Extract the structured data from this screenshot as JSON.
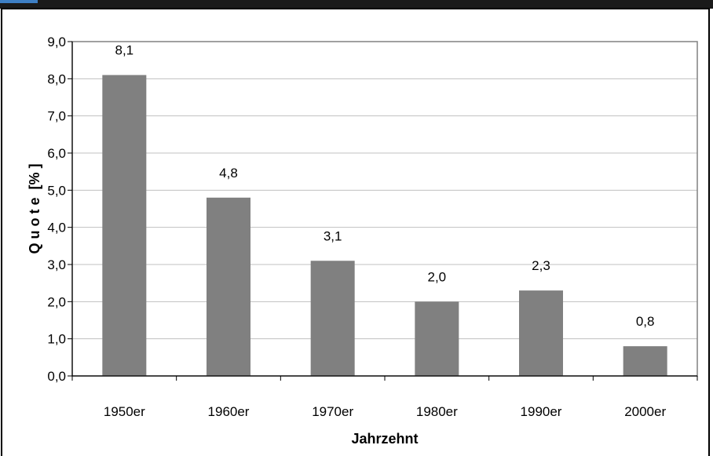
{
  "chart_data": {
    "type": "bar",
    "categories": [
      "1950er",
      "1960er",
      "1970er",
      "1980er",
      "1990er",
      "2000er"
    ],
    "values": [
      8.1,
      4.8,
      3.1,
      2.0,
      2.3,
      0.8
    ],
    "value_labels": [
      "8,1",
      "4,8",
      "3,1",
      "2,0",
      "2,3",
      "0,8"
    ],
    "title": "",
    "xlabel": "Jahrzehnt",
    "ylabel": "Q u o t e  [% ]",
    "ylim": [
      0,
      9
    ],
    "yticks": [
      0,
      1,
      2,
      3,
      4,
      5,
      6,
      7,
      8,
      9
    ],
    "ytick_labels": [
      "0,0",
      "1,0",
      "2,0",
      "3,0",
      "4,0",
      "5,0",
      "6,0",
      "7,0",
      "8,0",
      "9,0"
    ],
    "grid": true,
    "legend": "none",
    "colors": {
      "bar": "#808080",
      "gridline": "#c0c0c0",
      "plot_border": "#808080",
      "axis": "#000000",
      "frame": "#000000",
      "top_bar": "#1a1a1a",
      "top_accent": "#3d7fc4"
    }
  }
}
